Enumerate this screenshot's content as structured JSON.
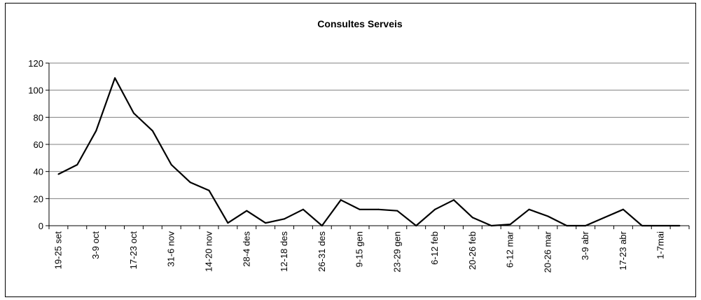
{
  "chart_data": {
    "type": "line",
    "title": "Consultes Serveis",
    "xlabel": "",
    "ylabel": "",
    "ylim": [
      0,
      120
    ],
    "yticks": [
      0,
      20,
      40,
      60,
      80,
      100,
      120
    ],
    "grid": "horizontal",
    "legend": "none",
    "x": [
      "19-25 set",
      "",
      "3-9 oct",
      "",
      "17-23 oct",
      "",
      "31-6 nov",
      "",
      "14-20 nov",
      "",
      "28-4 des",
      "",
      "12-18 des",
      "",
      "26-31 des",
      "",
      "9-15 gen",
      "",
      "23-29 gen",
      "",
      "6-12 feb",
      "",
      "20-26 feb",
      "",
      "6-12 mar",
      "",
      "20-26 mar",
      "",
      "3-9 abr",
      "",
      "17-23 abr",
      "",
      "1-7mai",
      ""
    ],
    "values": [
      38,
      45,
      70,
      109,
      83,
      70,
      45,
      32,
      26,
      2,
      11,
      2,
      5,
      12,
      0,
      19,
      12,
      12,
      11,
      0,
      12,
      19,
      6,
      0,
      1,
      12,
      7,
      0,
      0,
      6,
      12,
      0,
      0,
      0
    ],
    "line_color": "#000000",
    "grid_color": "#808080"
  }
}
